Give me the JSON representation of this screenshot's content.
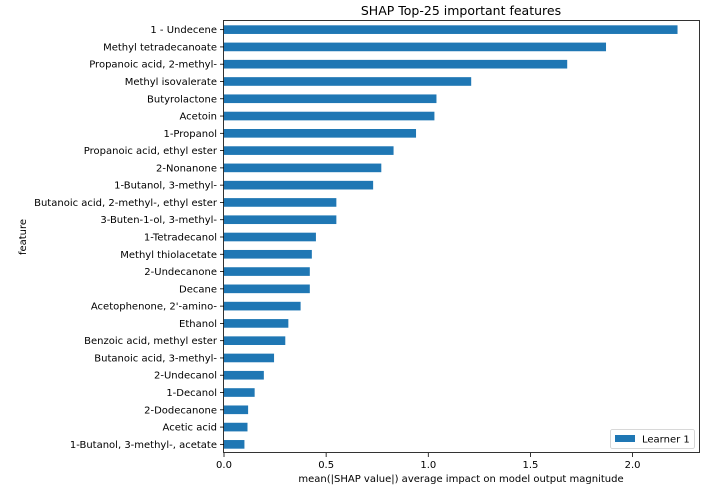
{
  "chart_data": {
    "type": "bar",
    "orientation": "horizontal",
    "title": "SHAP Top-25 important features",
    "xlabel": "mean(|SHAP value|) average impact on model output magnitude",
    "ylabel": "feature",
    "xlim": [
      0.0,
      2.33
    ],
    "xticks": [
      0.0,
      0.5,
      1.0,
      1.5,
      2.0
    ],
    "xtick_labels": [
      "0.0",
      "0.5",
      "1.0",
      "1.5",
      "2.0"
    ],
    "legend_position": "bottom-right",
    "bar_color": "#1f77b4",
    "categories": [
      "1 - Undecene",
      "Methyl tetradecanoate",
      "Propanoic acid, 2-methyl-",
      "Methyl isovalerate",
      "Butyrolactone ",
      "Acetoin",
      "1-Propanol",
      "Propanoic acid, ethyl ester",
      "2-Nonanone ",
      "1-Butanol, 3-methyl-",
      "Butanoic acid, 2-methyl-, ethyl ester",
      "3-Buten-1-ol, 3-methyl-",
      "1-Tetradecanol",
      "Methyl thiolacetate",
      "2-Undecanone",
      "Decane",
      "Acetophenone, 2'-amino-",
      "Ethanol",
      "Benzoic acid, methyl ester",
      "Butanoic acid, 3-methyl-",
      "2-Undecanol",
      "1-Decanol",
      "2-Dodecanone",
      "Acetic acid",
      "1-Butanol, 3-methyl-, acetate"
    ],
    "series": [
      {
        "name": "Learner 1",
        "values": [
          2.22,
          1.87,
          1.68,
          1.21,
          1.04,
          1.03,
          0.94,
          0.83,
          0.77,
          0.73,
          0.55,
          0.55,
          0.45,
          0.43,
          0.42,
          0.42,
          0.375,
          0.315,
          0.3,
          0.245,
          0.195,
          0.15,
          0.118,
          0.115,
          0.1
        ]
      }
    ]
  }
}
